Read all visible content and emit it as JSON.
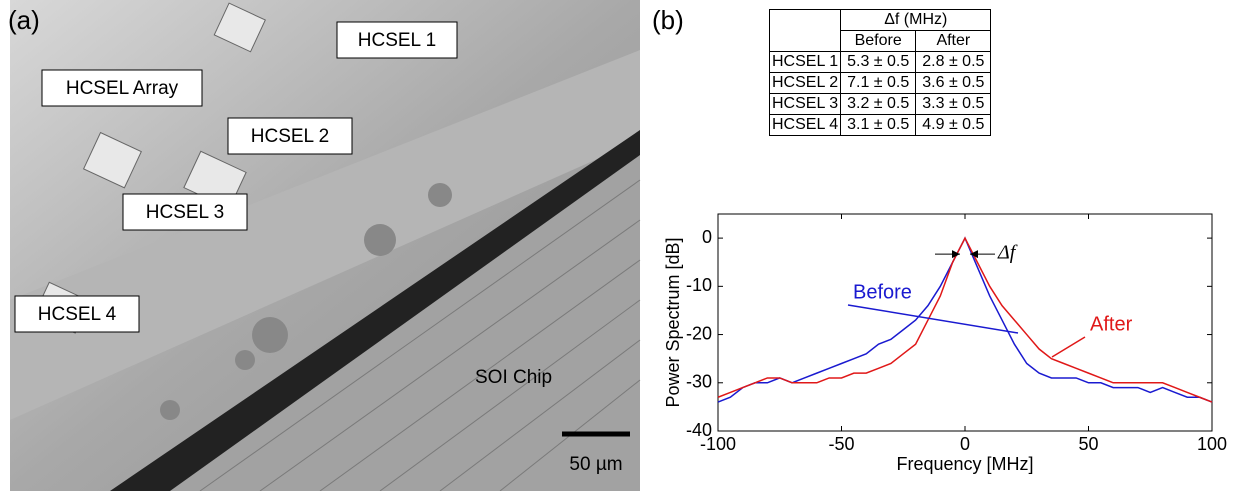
{
  "panel_labels": [
    "(a)",
    "(b)"
  ],
  "photo": {
    "labels": [
      "HCSEL 1",
      "HCSEL Array",
      "HCSEL 2",
      "HCSEL 3",
      "HCSEL 4",
      "SOI Chip"
    ],
    "scale_bar": "50 µm"
  },
  "table": {
    "header": {
      "title": "Δf (MHz)"
    },
    "columns": [
      "Before",
      "After"
    ],
    "rows": [
      [
        "HCSEL 1",
        "5.3 ± 0.5",
        "2.8 ± 0.5"
      ],
      [
        "HCSEL 2",
        "7.1 ± 0.5",
        "3.6 ± 0.5"
      ],
      [
        "HCSEL 3",
        "3.2 ± 0.5",
        "3.3 ± 0.5"
      ],
      [
        "HCSEL 4",
        "3.1 ± 0.5",
        "4.9 ± 0.5"
      ]
    ]
  },
  "chart_data": {
    "type": "line",
    "x_label": "Frequency [MHz]",
    "y_label": "Power Spectrum [dB]",
    "annotation": "Δf",
    "x": [
      -100,
      -95,
      -90,
      -85,
      -80,
      -75,
      -70,
      -65,
      -60,
      -55,
      -50,
      -45,
      -40,
      -35,
      -30,
      -25,
      -20,
      -15,
      -10,
      -5,
      0,
      5,
      10,
      15,
      20,
      25,
      30,
      35,
      40,
      45,
      50,
      55,
      60,
      65,
      70,
      75,
      80,
      85,
      90,
      95,
      100
    ],
    "series": [
      {
        "name": "Before",
        "color": "#1a1ad0",
        "values": [
          -34,
          -33,
          -31,
          -30,
          -30,
          -29,
          -30,
          -29,
          -28,
          -27,
          -26,
          -25,
          -24,
          -22,
          -21,
          -19,
          -17,
          -14,
          -10,
          -5,
          0,
          -6,
          -12,
          -17,
          -22,
          -26,
          -28,
          -29,
          -29,
          -29,
          -30,
          -30,
          -31,
          -31,
          -31,
          -32,
          -31,
          -32,
          -33,
          -33,
          -34
        ]
      },
      {
        "name": "After",
        "color": "#e01818",
        "values": [
          -33,
          -32,
          -31,
          -30,
          -29,
          -29,
          -30,
          -30,
          -30,
          -29,
          -29,
          -28,
          -28,
          -27,
          -26,
          -24,
          -22,
          -17,
          -12,
          -5,
          0,
          -5,
          -10,
          -14,
          -17,
          -20,
          -23,
          -25,
          -26,
          -27,
          -28,
          -29,
          -30,
          -30,
          -30,
          -30,
          -30,
          -31,
          -32,
          -33,
          -34
        ]
      }
    ],
    "xlim": [
      -100,
      100
    ],
    "ylim": [
      -40,
      5
    ],
    "xticks": [
      -100,
      -50,
      0,
      50,
      100
    ],
    "yticks": [
      -40,
      -30,
      -20,
      -10,
      0
    ]
  }
}
